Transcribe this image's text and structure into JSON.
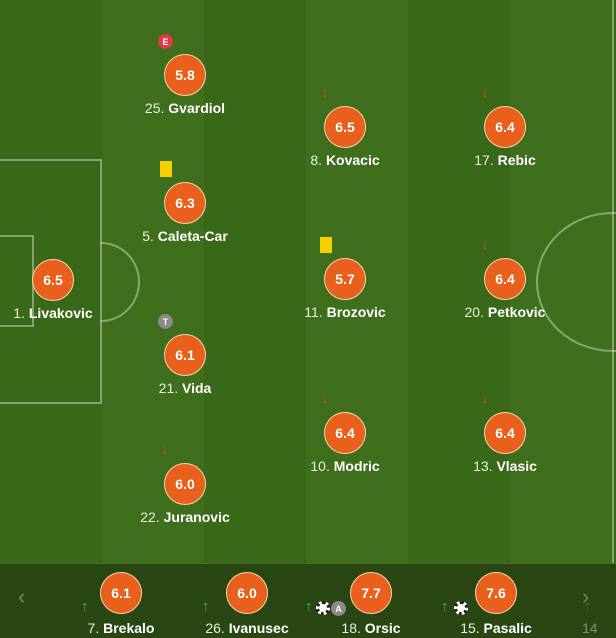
{
  "colors": {
    "rating_bg": "#e8601c",
    "sub_in_arrow": "#22cc22",
    "sub_out_arrow": "#e53935",
    "yellow_card": "#f5d000"
  },
  "starters": [
    {
      "number": "1.",
      "name": "Livakovic",
      "rating": "6.5"
    },
    {
      "number": "25.",
      "name": "Gvardiol",
      "rating": "5.8",
      "badge": "E"
    },
    {
      "number": "5.",
      "name": "Caleta-Car",
      "rating": "6.3",
      "card": "yellow"
    },
    {
      "number": "21.",
      "name": "Vida",
      "rating": "6.1",
      "badge": "T"
    },
    {
      "number": "22.",
      "name": "Juranovic",
      "rating": "6.0",
      "arrow": "↓"
    },
    {
      "number": "8.",
      "name": "Kovacic",
      "rating": "6.5",
      "arrow": "↓"
    },
    {
      "number": "11.",
      "name": "Brozovic",
      "rating": "5.7",
      "card": "yellow"
    },
    {
      "number": "10.",
      "name": "Modric",
      "rating": "6.4",
      "arrow": "↓"
    },
    {
      "number": "17.",
      "name": "Rebic",
      "rating": "6.4",
      "arrow": "↓"
    },
    {
      "number": "20.",
      "name": "Petkovic",
      "rating": "6.4",
      "arrow": "↓"
    },
    {
      "number": "13.",
      "name": "Vlasic",
      "rating": "6.4",
      "arrow": "↓"
    }
  ],
  "subs": [
    {
      "number": "7.",
      "name": "Brekalo",
      "rating": "6.1",
      "arrow": "↑"
    },
    {
      "number": "26.",
      "name": "Ivanusec",
      "rating": "6.0",
      "arrow": "↑"
    },
    {
      "number": "18.",
      "name": "Orsic",
      "rating": "7.7",
      "arrow": "↑",
      "badge": "A",
      "goal": true
    },
    {
      "number": "15.",
      "name": "Pasalic",
      "rating": "7.6",
      "arrow": "↑",
      "goal": true
    },
    {
      "number": "14",
      "arrow": "↑"
    }
  ],
  "nav": {
    "prev": "‹",
    "next": "›"
  }
}
